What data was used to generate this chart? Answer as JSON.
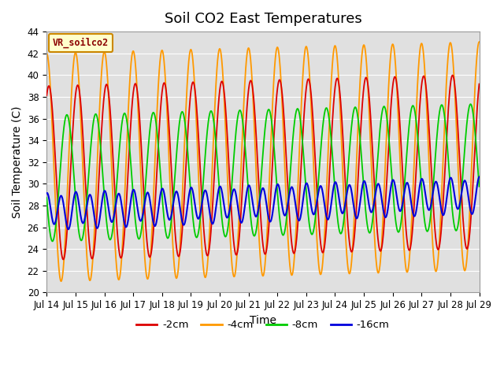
{
  "title": "Soil CO2 East Temperatures",
  "xlabel": "Time",
  "ylabel": "Soil Temperature (C)",
  "ylim": [
    20,
    44
  ],
  "label_text": "VR_soilco2",
  "legend_labels": [
    "-2cm",
    "-4cm",
    "-8cm",
    "-16cm"
  ],
  "legend_colors": [
    "#dd0000",
    "#ff9900",
    "#00cc00",
    "#0000dd"
  ],
  "bg_color": "#e0e0e0",
  "fig_color": "#ffffff",
  "grid_color": "#ffffff",
  "xtick_labels": [
    "Jul 14",
    "Jul 15",
    "Jul 16",
    "Jul 17",
    "Jul 18",
    "Jul 19",
    "Jul 20",
    "Jul 21",
    "Jul 22",
    "Jul 23",
    "Jul 24",
    "Jul 25",
    "Jul 26",
    "Jul 27",
    "Jul 28",
    "Jul 29"
  ],
  "title_fontsize": 13,
  "axis_label_fontsize": 10,
  "tick_fontsize": 8.5,
  "yticks": [
    20,
    22,
    24,
    26,
    28,
    30,
    32,
    34,
    36,
    38,
    40,
    42,
    44
  ]
}
